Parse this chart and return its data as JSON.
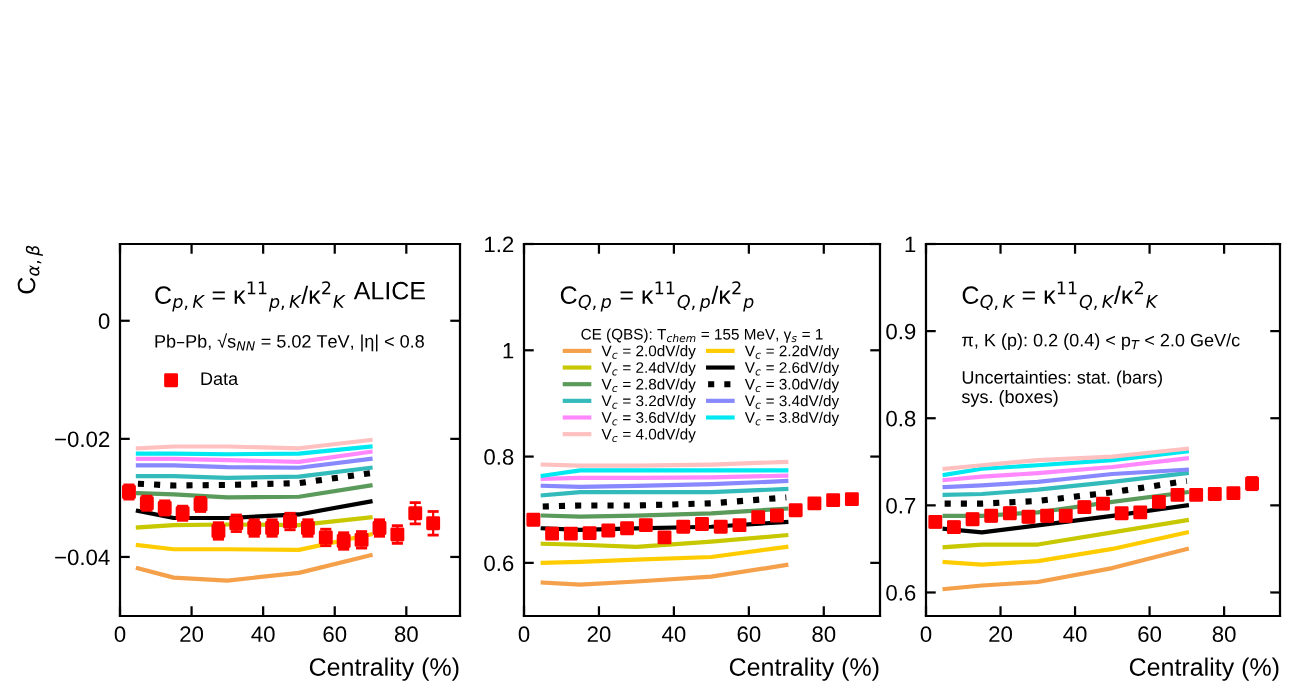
{
  "chart_data": [
    {
      "type": "line",
      "ylabel": "C$_{α,β}$",
      "xlabel": "Centrality (%)",
      "xlim": [
        0,
        95
      ],
      "xticks": [
        0,
        20,
        40,
        60,
        80
      ],
      "ylim": [
        -0.05,
        0.013
      ],
      "yticks": [
        {
          "value": -0.04,
          "label": "−0.04"
        },
        {
          "value": -0.02,
          "label": "−0.02"
        },
        0
      ],
      "grid": false,
      "legend": "top left",
      "x": [
        5,
        15,
        30,
        50,
        70
      ],
      "annotations": [
        "C$_{p,K}$ = κ$^{11}$$_{p,K}$/κ$^{2}$$_{K}$",
        "ALICE",
        "Pb–Pb, √s$_{NN}$ = 5.02 TeV, |η| < 0.8"
      ],
      "series": [
        {
          "color": "#f5a04a",
          "values": [
            -0.0419,
            -0.0435,
            -0.044,
            -0.0427,
            -0.0397
          ]
        },
        {
          "color": "#ffcc00",
          "values": [
            -0.038,
            -0.0387,
            -0.0387,
            -0.0388,
            -0.0362
          ]
        },
        {
          "color": "#c8c800",
          "values": [
            -0.035,
            -0.0346,
            -0.0345,
            -0.0346,
            -0.0333
          ]
        },
        {
          "color": "#000000",
          "values": [
            -0.0322,
            -0.0334,
            -0.0334,
            -0.0328,
            -0.0306
          ]
        },
        {
          "color": "#5a9a5a",
          "values": [
            -0.0292,
            -0.0294,
            -0.0299,
            -0.0298,
            -0.0279
          ]
        },
        {
          "color": "#000000",
          "line_style": "dotted",
          "values": [
            -0.0276,
            -0.0279,
            -0.0278,
            -0.0275,
            -0.0258
          ]
        },
        {
          "color": "#33bbbb",
          "values": [
            -0.0263,
            -0.0263,
            -0.0266,
            -0.0264,
            -0.0249
          ]
        },
        {
          "color": "#8888ff",
          "values": [
            -0.0245,
            -0.0245,
            -0.0248,
            -0.0249,
            -0.0234
          ]
        },
        {
          "color": "#ff88ff",
          "values": [
            -0.0234,
            -0.0234,
            -0.0236,
            -0.0239,
            -0.0222
          ]
        },
        {
          "color": "#00e8f0",
          "values": [
            -0.0225,
            -0.0225,
            -0.0226,
            -0.0225,
            -0.0213
          ]
        },
        {
          "color": "#ffc0c0",
          "values": [
            -0.0216,
            -0.0213,
            -0.0213,
            -0.0216,
            -0.0202
          ]
        },
        {
          "type": "scatter",
          "name": "Data",
          "color": "#ff0000",
          "marker": "square",
          "x": [
            2.5,
            7.5,
            12.5,
            17.5,
            22.5,
            27.5,
            32.5,
            37.5,
            42.5,
            47.5,
            52.5,
            57.5,
            62.5,
            67.5,
            72.5,
            77.5,
            82.5,
            87.5
          ],
          "values": [
            -0.029,
            -0.0309,
            -0.0317,
            -0.0326,
            -0.0311,
            -0.0356,
            -0.0343,
            -0.0351,
            -0.0351,
            -0.034,
            -0.0351,
            -0.0367,
            -0.0373,
            -0.0371,
            -0.0351,
            -0.0362,
            -0.0326,
            -0.0343
          ],
          "errors": [
            0.0012,
            0.0012,
            0.0012,
            0.0012,
            0.0012,
            0.0014,
            0.0014,
            0.0014,
            0.0014,
            0.0014,
            0.0014,
            0.0014,
            0.0014,
            0.0014,
            0.0014,
            0.0015,
            0.0018,
            0.002
          ]
        }
      ]
    },
    {
      "type": "line",
      "xlabel": "Centrality (%)",
      "xlim": [
        0,
        95
      ],
      "xticks": [
        0,
        20,
        40,
        60,
        80
      ],
      "ylim": [
        0.5,
        1.2
      ],
      "yticks": [
        0.6,
        0.8,
        1,
        1.2
      ],
      "grid": false,
      "legend": "top",
      "legend_title": "CE (QBS): T$_{chem}$ = 155 MeV, γ$_{s}$ = 1",
      "x": [
        5,
        15,
        30,
        50,
        70
      ],
      "annotations": [
        "C$_{Q,p}$ = κ$^{11}$$_{Q,p}$/κ$^{2}$$_{p}$"
      ],
      "series": [
        {
          "name": "V$_{c}$ = 2.0dV/dy",
          "color": "#f5a04a",
          "values": [
            0.563,
            0.559,
            0.565,
            0.574,
            0.596
          ]
        },
        {
          "name": "V$_{c}$ = 2.2dV/dy",
          "color": "#ffcc00",
          "values": [
            0.6,
            0.602,
            0.606,
            0.611,
            0.63
          ]
        },
        {
          "name": "V$_{c}$ = 2.4dV/dy",
          "color": "#c8c800",
          "values": [
            0.636,
            0.634,
            0.63,
            0.64,
            0.652
          ]
        },
        {
          "name": "V$_{c}$ = 2.6dV/dy",
          "color": "#000000",
          "values": [
            0.665,
            0.662,
            0.665,
            0.668,
            0.677
          ]
        },
        {
          "name": "V$_{c}$ = 2.8dV/dy",
          "color": "#5a9a5a",
          "values": [
            0.689,
            0.687,
            0.689,
            0.693,
            0.702
          ]
        },
        {
          "name": "V$_{c}$ = 3.0dV/dy",
          "color": "#000000",
          "line_style": "dotted",
          "values": [
            0.706,
            0.708,
            0.708,
            0.712,
            0.723
          ]
        },
        {
          "name": "V$_{c}$ = 3.2dV/dy",
          "color": "#33bbbb",
          "values": [
            0.727,
            0.733,
            0.733,
            0.733,
            0.739
          ]
        },
        {
          "name": "V$_{c}$ = 3.4dV/dy",
          "color": "#8888ff",
          "values": [
            0.745,
            0.743,
            0.745,
            0.748,
            0.754
          ]
        },
        {
          "name": "V$_{c}$ = 3.6dV/dy",
          "color": "#ff88ff",
          "values": [
            0.758,
            0.76,
            0.76,
            0.761,
            0.764
          ]
        },
        {
          "name": "V$_{c}$ = 3.8dV/dy",
          "color": "#00e8f0",
          "values": [
            0.764,
            0.774,
            0.774,
            0.774,
            0.774
          ]
        },
        {
          "name": "V$_{c}$ = 4.0dV/dy",
          "color": "#ffc0c0",
          "values": [
            0.785,
            0.783,
            0.783,
            0.785,
            0.79
          ]
        },
        {
          "type": "scatter",
          "color": "#ff0000",
          "marker": "square",
          "x": [
            2.5,
            7.5,
            12.5,
            17.5,
            22.5,
            27.5,
            32.5,
            37.5,
            42.5,
            47.5,
            52.5,
            57.5,
            62.5,
            67.5,
            72.5,
            77.5,
            82.5,
            87.5
          ],
          "values": [
            0.681,
            0.655,
            0.655,
            0.656,
            0.661,
            0.665,
            0.671,
            0.648,
            0.668,
            0.673,
            0.668,
            0.671,
            0.686,
            0.689,
            0.699,
            0.712,
            0.718,
            0.72
          ]
        }
      ]
    },
    {
      "type": "line",
      "xlabel": "Centrality (%)",
      "xlim": [
        0,
        95
      ],
      "xticks": [
        0,
        20,
        40,
        60,
        80
      ],
      "ylim": [
        0.573,
        1
      ],
      "yticks": [
        0.6,
        0.7,
        0.8,
        0.9,
        1
      ],
      "grid": false,
      "x": [
        5,
        15,
        30,
        50,
        70
      ],
      "annotations": [
        "C$_{Q,K}$ = κ$^{11}$$_{Q,K}$/κ$^{2}$$_{K}$",
        "π, K (p): 0.2 (0.4) < p$_{T}$ < 2.0 GeV/c",
        "Uncertainties: stat. (bars)\nsys. (boxes)"
      ],
      "series": [
        {
          "color": "#f5a04a",
          "values": [
            0.604,
            0.608,
            0.612,
            0.628,
            0.65
          ]
        },
        {
          "color": "#ffcc00",
          "values": [
            0.635,
            0.632,
            0.636,
            0.65,
            0.669
          ]
        },
        {
          "color": "#c8c800",
          "values": [
            0.652,
            0.655,
            0.655,
            0.669,
            0.683
          ]
        },
        {
          "color": "#000000",
          "values": [
            0.673,
            0.669,
            0.677,
            0.688,
            0.7
          ]
        },
        {
          "color": "#5a9a5a",
          "values": [
            0.688,
            0.688,
            0.692,
            0.704,
            0.715
          ]
        },
        {
          "color": "#000000",
          "line_style": "dotted",
          "values": [
            0.702,
            0.702,
            0.705,
            0.715,
            0.728
          ]
        },
        {
          "color": "#33bbbb",
          "values": [
            0.712,
            0.713,
            0.718,
            0.727,
            0.737
          ]
        },
        {
          "color": "#8888ff",
          "values": [
            0.721,
            0.723,
            0.727,
            0.736,
            0.741
          ]
        },
        {
          "color": "#ff88ff",
          "values": [
            0.729,
            0.733,
            0.737,
            0.744,
            0.754
          ]
        },
        {
          "color": "#00e8f0",
          "values": [
            0.735,
            0.742,
            0.746,
            0.752,
            0.762
          ]
        },
        {
          "color": "#ffc0c0",
          "values": [
            0.742,
            0.746,
            0.752,
            0.756,
            0.765
          ]
        },
        {
          "type": "scatter",
          "color": "#ff0000",
          "marker": "square",
          "x": [
            2.5,
            7.5,
            12.5,
            17.5,
            22.5,
            27.5,
            32.5,
            37.5,
            42.5,
            47.5,
            52.5,
            57.5,
            62.5,
            67.5,
            72.5,
            77.5,
            82.5,
            87.5
          ],
          "values": [
            0.681,
            0.675,
            0.684,
            0.688,
            0.691,
            0.687,
            0.688,
            0.688,
            0.698,
            0.702,
            0.691,
            0.692,
            0.704,
            0.712,
            0.712,
            0.713,
            0.714,
            0.725
          ],
          "errors": [
            0.006,
            0.006,
            0.006,
            0.006,
            0.006,
            0.006,
            0.006,
            0.006,
            0.006,
            0.006,
            0.005,
            0.005,
            0.005,
            0.005,
            0.005,
            0.005,
            0.005,
            0.007
          ]
        }
      ]
    }
  ]
}
